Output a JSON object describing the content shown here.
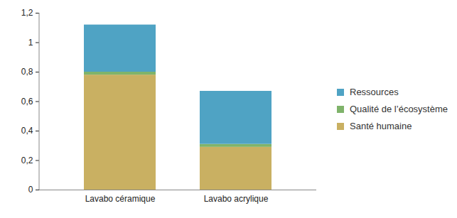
{
  "chart_data": {
    "type": "bar",
    "stacked": true,
    "legend": "right",
    "grid": false,
    "categories": [
      "Lavabo céramique",
      "Lavabo acrylique"
    ],
    "series": [
      {
        "name": "Santé humaine",
        "color": "#c9b062",
        "values": [
          0.78,
          0.29
        ]
      },
      {
        "name": "Qualité de l’écosystème",
        "color": "#7fb36a",
        "values": [
          0.02,
          0.02
        ]
      },
      {
        "name": "Ressources",
        "color": "#4fa3c4",
        "values": [
          0.32,
          0.36
        ]
      }
    ],
    "ylim": [
      0,
      1.2
    ],
    "yticks": [
      0,
      {
        "value": 0.2,
        "label": "0,2"
      },
      {
        "value": 0.4,
        "label": "0,4"
      },
      {
        "value": 0.6,
        "label": "0,6"
      },
      {
        "value": 0.8,
        "label": "0,8"
      },
      1,
      {
        "value": 1.2,
        "label": "1,2"
      }
    ]
  }
}
